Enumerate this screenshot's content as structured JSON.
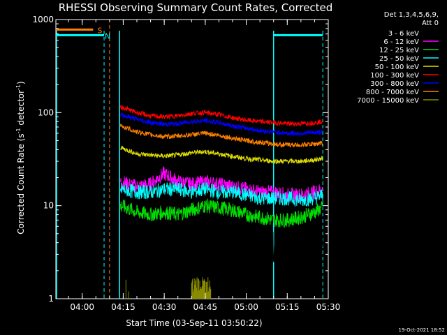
{
  "chart_data": {
    "type": "line",
    "title": "RHESSI Observing Summary Count Rates, Corrected",
    "xlabel": "Start Time (03-Sep-11 03:50:22)",
    "ylabel_main": "Corrected Count Rate (s",
    "ylabel_sup1": "-1",
    "ylabel_mid": " detector",
    "ylabel_sup2": "-1",
    "ylabel_end": ")",
    "y_scale": "log",
    "ylim": [
      1,
      1000
    ],
    "xlim": [
      "03:50:22",
      "05:30"
    ],
    "x_ticks": [
      "04:00",
      "04:15",
      "04:30",
      "04:45",
      "05:00",
      "05:15",
      "05:30"
    ],
    "y_ticks": [
      "1",
      "10",
      "100",
      "1000"
    ],
    "legend_header_1": "Det 1,3,4,5,6,9,",
    "legend_header_2": "Att 0",
    "timestamp": "19-Oct-2021 18:52",
    "annotations": [
      "S",
      "N"
    ],
    "series": [
      {
        "name": "3 - 6 keV",
        "color": "#000000",
        "x": [
          "04:14",
          "04:20",
          "04:25",
          "04:30",
          "04:35",
          "04:40",
          "04:45",
          "04:50",
          "04:55",
          "05:00",
          "05:05",
          "05:10",
          "05:15",
          "05:20",
          "05:25",
          "05:28"
        ],
        "values": [
          13,
          9,
          7,
          10,
          9,
          12,
          14,
          12,
          10,
          9,
          8,
          3.5,
          3.5,
          3.5,
          3.5,
          3.5
        ]
      },
      {
        "name": "6 - 12 keV",
        "color": "#ff00ff",
        "x": [
          "04:14",
          "04:20",
          "04:25",
          "04:30",
          "04:35",
          "04:40",
          "04:45",
          "04:50",
          "04:55",
          "05:00",
          "05:05",
          "05:10",
          "05:15",
          "05:20",
          "05:25",
          "05:28"
        ],
        "values": [
          18,
          16,
          17,
          22,
          18,
          17,
          18,
          17,
          16,
          15,
          14,
          14,
          13,
          13,
          14,
          15
        ]
      },
      {
        "name": "12 - 25 keV",
        "color": "#00e000",
        "x": [
          "04:14",
          "04:20",
          "04:25",
          "04:30",
          "04:35",
          "04:40",
          "04:45",
          "04:50",
          "04:55",
          "05:00",
          "05:05",
          "05:10",
          "05:15",
          "05:20",
          "05:25",
          "05:28"
        ],
        "values": [
          10,
          8.5,
          8,
          8.5,
          8,
          9,
          10,
          9.5,
          9,
          8,
          7.5,
          7,
          7,
          7.5,
          8.5,
          9.5
        ]
      },
      {
        "name": "25 - 50 keV",
        "color": "#00ffff",
        "x": [
          "04:14",
          "04:20",
          "04:25",
          "04:30",
          "04:35",
          "04:40",
          "04:45",
          "04:50",
          "04:55",
          "05:00",
          "05:05",
          "05:10",
          "05:15",
          "05:20",
          "05:25",
          "05:28"
        ],
        "values": [
          15,
          14,
          14,
          15,
          15,
          14,
          15,
          14,
          14,
          13,
          12,
          12,
          12,
          11.5,
          12,
          13
        ]
      },
      {
        "name": "50 - 100 keV",
        "color": "#e0e000",
        "x": [
          "04:14",
          "04:20",
          "04:25",
          "04:30",
          "04:35",
          "04:40",
          "04:45",
          "04:50",
          "04:55",
          "05:00",
          "05:05",
          "05:10",
          "05:15",
          "05:20",
          "05:25",
          "05:28"
        ],
        "values": [
          42,
          36,
          35,
          34,
          35,
          37,
          38,
          36,
          34,
          32,
          31,
          30,
          30,
          30,
          31,
          32
        ]
      },
      {
        "name": "100 - 300 keV",
        "color": "#ff0000",
        "x": [
          "04:14",
          "04:20",
          "04:25",
          "04:30",
          "04:35",
          "04:40",
          "04:45",
          "04:50",
          "04:55",
          "05:00",
          "05:05",
          "05:10",
          "05:15",
          "05:20",
          "05:25",
          "05:28"
        ],
        "values": [
          115,
          100,
          92,
          90,
          92,
          98,
          100,
          95,
          88,
          83,
          80,
          78,
          76,
          76,
          78,
          80
        ]
      },
      {
        "name": "300 - 800 keV",
        "color": "#0000ff",
        "x": [
          "04:14",
          "04:20",
          "04:25",
          "04:30",
          "04:35",
          "04:40",
          "04:45",
          "04:50",
          "04:55",
          "05:00",
          "05:05",
          "05:10",
          "05:15",
          "05:20",
          "05:25",
          "05:28"
        ],
        "values": [
          95,
          85,
          78,
          75,
          76,
          80,
          82,
          78,
          72,
          68,
          64,
          62,
          60,
          60,
          61,
          62
        ]
      },
      {
        "name": "800 - 7000 keV",
        "color": "#ff8000",
        "x": [
          "04:14",
          "04:20",
          "04:25",
          "04:30",
          "04:35",
          "04:40",
          "04:45",
          "04:50",
          "04:55",
          "05:00",
          "05:05",
          "05:10",
          "05:15",
          "05:20",
          "05:25",
          "05:28"
        ],
        "values": [
          72,
          62,
          58,
          55,
          56,
          58,
          60,
          57,
          53,
          50,
          48,
          46,
          45,
          45,
          46,
          47
        ]
      },
      {
        "name": "7000 - 15000 keV",
        "color": "#8b8b00",
        "x": [
          "04:14",
          "04:16",
          "04:17",
          "04:18",
          "04:40",
          "04:42",
          "04:44",
          "04:46",
          "04:47"
        ],
        "values": [
          1,
          1.6,
          1.2,
          1,
          1,
          1.7,
          1.7,
          1.7,
          1
        ]
      }
    ],
    "markers": {
      "S_bar": {
        "color": "#ff8000",
        "start": "03:50:22",
        "end": "04:04",
        "level": 780
      },
      "N_bar_left": {
        "color": "#00ffff",
        "start": "03:50:22",
        "end": "04:08",
        "level": 680
      },
      "N_bar_right": {
        "color": "#00ffff",
        "start": "05:10",
        "end": "05:28",
        "level": 680
      },
      "cyan_solid_lines": [
        "03:50:22",
        "04:13:40",
        "05:10"
      ],
      "cyan_dashed_lines": [
        "04:08",
        "05:28"
      ],
      "orange_dashed_line": "04:10"
    }
  }
}
